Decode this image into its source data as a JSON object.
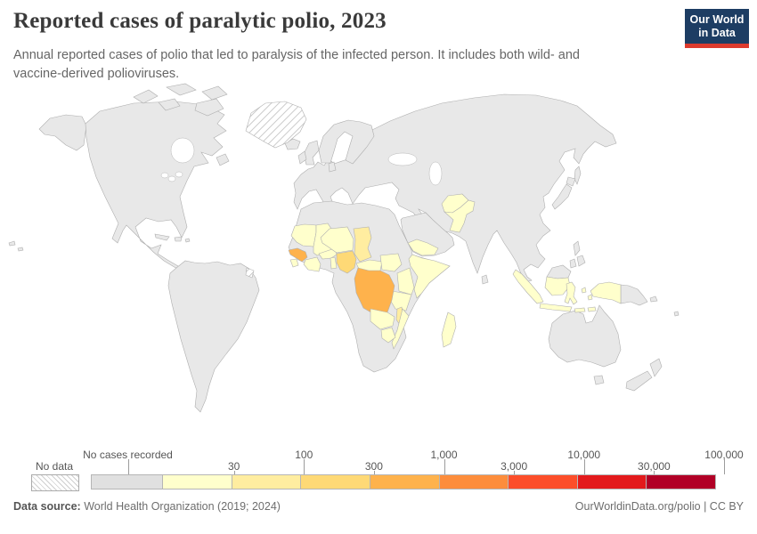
{
  "header": {
    "title": "Reported cases of paralytic polio, 2023",
    "subtitle": "Annual reported cases of polio that led to paralysis of the infected person. It includes both wild- and vaccine-derived polioviruses.",
    "logo": {
      "line1": "Our World",
      "line2": "in Data",
      "bg_color": "#1d3d63",
      "accent_color": "#dc3a2d"
    }
  },
  "legend": {
    "no_data_label": "No data",
    "no_cases_label": "No cases recorded",
    "tick_labels": [
      "30",
      "100",
      "300",
      "1,000",
      "3,000",
      "10,000",
      "30,000",
      "100,000"
    ],
    "no_cases_color": "#e0e0e0",
    "bin_colors": [
      "#ffffcc",
      "#ffeda0",
      "#fed976",
      "#feb24c",
      "#fd8d3c",
      "#fc4e2a",
      "#e31a1c",
      "#b10026"
    ]
  },
  "map": {
    "land_color": "#e8e8e8",
    "border_color": "#b0b0b0",
    "region_fills": {
      "greenland": "hatch",
      "french-guiana": "hatch",
      "mauritania": "#ffffcc",
      "mali": "#ffffcc",
      "burkina-faso": "#ffffcc",
      "guinea": "#feb24c",
      "sierra-leone": "#ffffcc",
      "cote-divoire": "#ffffcc",
      "benin": "#ffffcc",
      "niger": "#ffffcc",
      "nigeria": "#fed976",
      "chad": "#ffeda0",
      "central-african-republic": "#ffffcc",
      "south-sudan": "#ffffcc",
      "somalia": "#ffffcc",
      "yemen": "#ffffcc",
      "kenya": "#ffffcc",
      "tanzania": "#ffffcc",
      "dr-congo": "#feb24c",
      "zambia": "#ffffcc",
      "malawi": "#ffeda0",
      "mozambique": "#ffffcc",
      "zimbabwe": "#ffffcc",
      "madagascar": "#ffffcc",
      "afghanistan": "#ffffcc",
      "pakistan": "#ffffcc",
      "indonesia": "#ffffcc",
      "indonesia-papua": "#ffffcc"
    }
  },
  "footer": {
    "source_label": "Data source:",
    "source_value": " World Health Organization (2019; 2024)",
    "link_text": "OurWorldinData.org/polio",
    "license_text": " | CC BY"
  }
}
